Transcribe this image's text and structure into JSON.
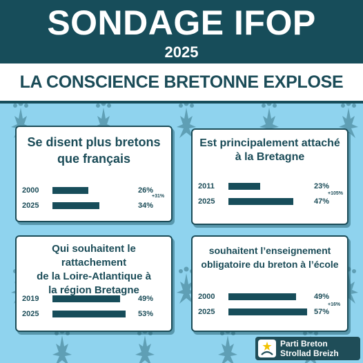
{
  "header": {
    "title": "SONDAGE IFOP",
    "year": "2025"
  },
  "headline": "LA CONSCIENCE BRETONNE EXPLOSE",
  "cards": [
    {
      "title_lines": [
        "Se disent plus bretons",
        "que français"
      ],
      "rows": [
        {
          "year": "2000",
          "label": "26%",
          "value": 26
        },
        {
          "year": "2025",
          "label": "34%",
          "value": 34
        }
      ],
      "delta": "+31%"
    },
    {
      "title_lines": [
        "Est principalement attaché",
        "à la Bretagne"
      ],
      "rows": [
        {
          "year": "2011",
          "label": "23%",
          "value": 23
        },
        {
          "year": "2025",
          "label": "47%",
          "value": 47
        }
      ],
      "delta": "+105%"
    },
    {
      "title_lines": [
        "Qui souhaitent le rattachement",
        "de la Loire-Atlantique à",
        "la région Bretagne"
      ],
      "rows": [
        {
          "year": "2019",
          "label": "49%",
          "value": 49
        },
        {
          "year": "2025",
          "label": "53%",
          "value": 53
        }
      ],
      "delta": ""
    },
    {
      "title_lines": [
        "souhaitent l’enseignement",
        "obligatoire du breton à l’école"
      ],
      "rows": [
        {
          "year": "2000",
          "label": "49%",
          "value": 49
        },
        {
          "year": "2025",
          "label": "57%",
          "value": 57
        }
      ],
      "delta": "+16%"
    }
  ],
  "logo": {
    "line1": "Parti Breton",
    "line2": "Strollad Breizh",
    "icon": "parti-breton-logo-icon",
    "colors": {
      "bg": "#1f4d58",
      "star": "#f2c200"
    }
  },
  "colors": {
    "header_bg": "#174d5a",
    "background": "#8fd3ee",
    "ermine": "#5f9fb5",
    "text": "#1a4b57"
  },
  "background_pattern": "ermine-icon"
}
